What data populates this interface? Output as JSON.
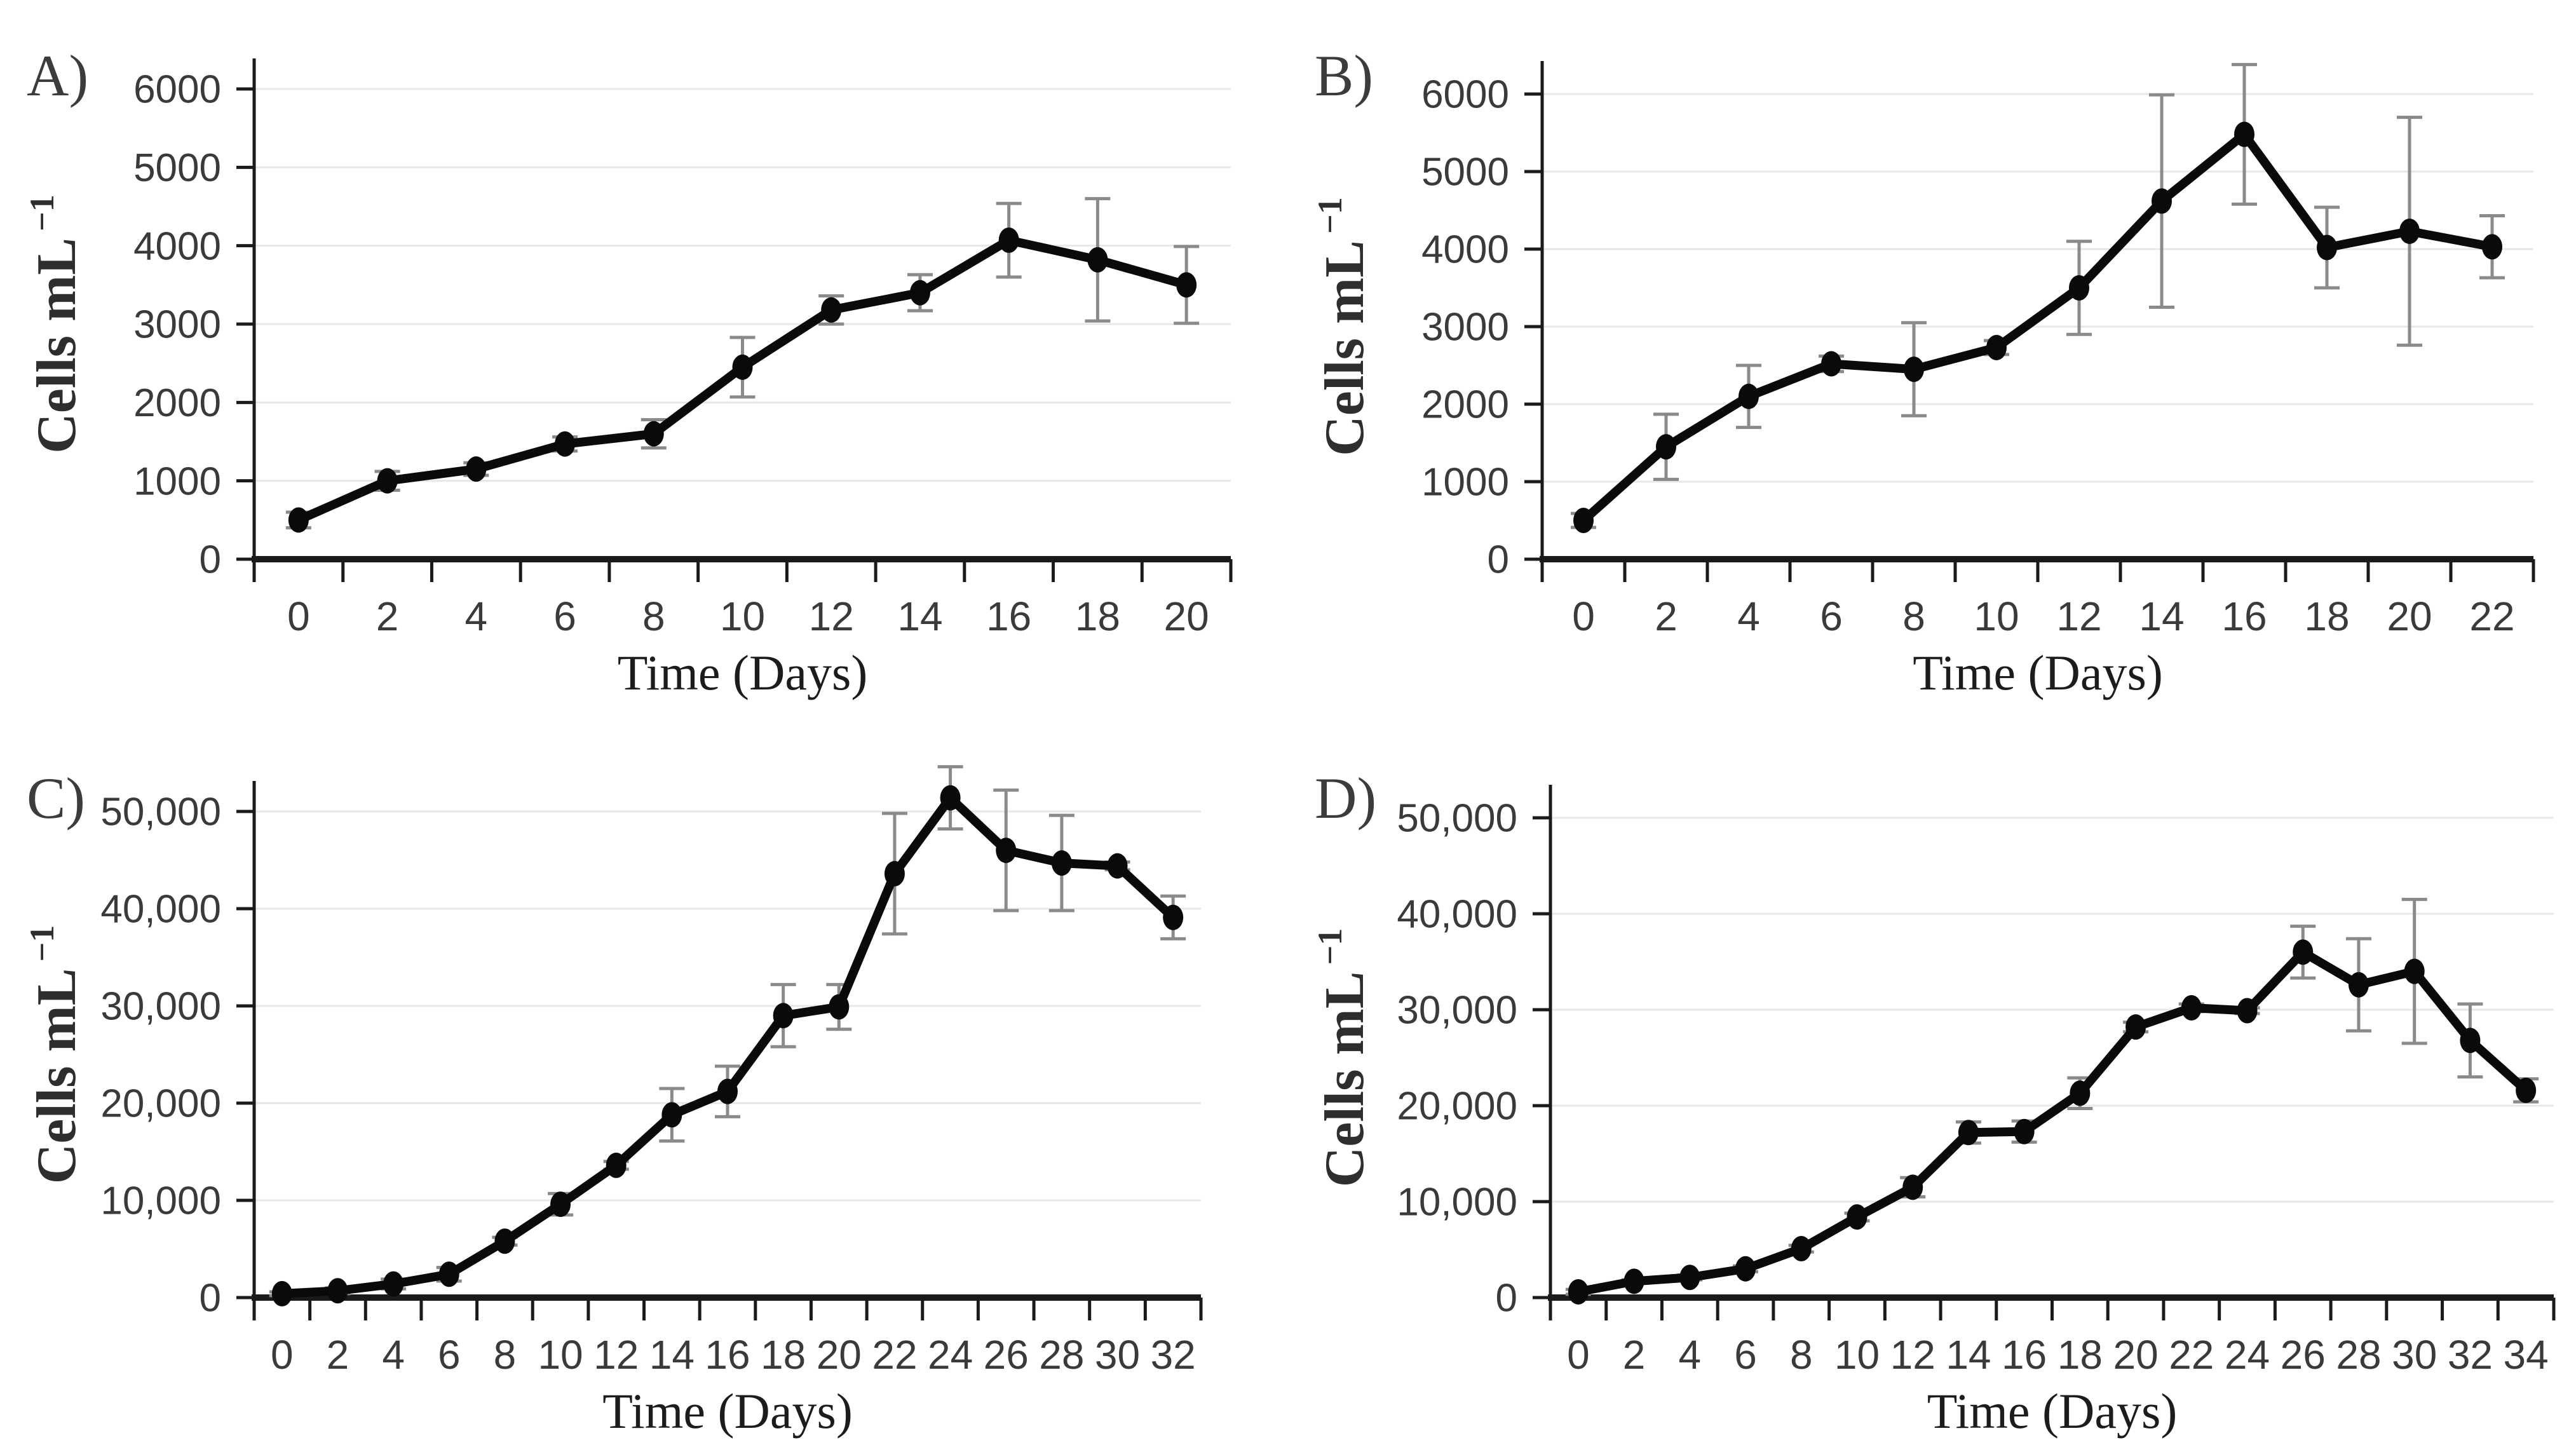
{
  "figure": {
    "background": "#ffffff",
    "panel_letters": [
      "A)",
      "B)",
      "C)",
      "D)"
    ]
  },
  "colors": {
    "line": "#0a0a0a",
    "marker": "#0a0a0a",
    "error_bar": "#8a8a8a",
    "gridline": "#e8e8e8",
    "axis": "#1a1a1a",
    "tick_text": "#3a3a3a",
    "title_text": "#1c1c1c"
  },
  "chart_data": [
    {
      "panel_label": "A)",
      "type": "line",
      "title": "",
      "xlabel": "Time (Days)",
      "ylabel": "Cells mL",
      "ylabel_superscript": "−1",
      "x": [
        0,
        2,
        4,
        6,
        8,
        10,
        12,
        14,
        16,
        18,
        20
      ],
      "y": [
        500,
        1000,
        1150,
        1470,
        1600,
        2450,
        3180,
        3400,
        4070,
        3820,
        3500
      ],
      "y_err": [
        100,
        120,
        80,
        90,
        180,
        380,
        180,
        230,
        470,
        780,
        490
      ],
      "y_tick_values": [
        0,
        1000,
        2000,
        3000,
        4000,
        5000,
        6000
      ],
      "y_tick_labels": [
        "0",
        "1000",
        "2000",
        "3000",
        "4000",
        "5000",
        "6000"
      ],
      "ylim": [
        0,
        6000
      ],
      "grid": "horizontal",
      "legend": "none",
      "marker": "filled-circle"
    },
    {
      "panel_label": "B)",
      "type": "line",
      "title": "",
      "xlabel": "Time (Days)",
      "ylabel": "Cells mL",
      "ylabel_superscript": "−1",
      "x": [
        0,
        2,
        4,
        6,
        8,
        10,
        12,
        14,
        16,
        18,
        20,
        22
      ],
      "y": [
        500,
        1450,
        2100,
        2520,
        2450,
        2730,
        3500,
        4620,
        5480,
        4020,
        4230,
        4030
      ],
      "y_err": [
        90,
        420,
        400,
        100,
        600,
        90,
        600,
        1370,
        900,
        520,
        1470,
        400
      ],
      "y_tick_values": [
        0,
        1000,
        2000,
        3000,
        4000,
        5000,
        6000
      ],
      "y_tick_labels": [
        "0",
        "1000",
        "2000",
        "3000",
        "4000",
        "5000",
        "6000"
      ],
      "ylim": [
        0,
        6000
      ],
      "grid": "horizontal",
      "legend": "none",
      "marker": "filled-circle"
    },
    {
      "panel_label": "C)",
      "type": "line",
      "title": "",
      "xlabel": "Time (Days)",
      "ylabel": "Cells mL",
      "ylabel_superscript": "−1",
      "x": [
        0,
        2,
        4,
        6,
        8,
        10,
        12,
        14,
        16,
        18,
        20,
        22,
        24,
        26,
        28,
        30,
        32
      ],
      "y": [
        400,
        700,
        1400,
        2400,
        5800,
        9600,
        13600,
        18800,
        21200,
        29000,
        29900,
        43600,
        51400,
        46000,
        44700,
        44400,
        39100
      ],
      "y_err": [
        200,
        300,
        500,
        700,
        400,
        1100,
        400,
        2700,
        2600,
        3200,
        2300,
        6200,
        3200,
        6200,
        4900,
        400,
        2200
      ],
      "y_tick_values": [
        0,
        10000,
        20000,
        30000,
        40000,
        50000
      ],
      "y_tick_labels": [
        "0",
        "10,000",
        "20,000",
        "30,000",
        "40,000",
        "50,000"
      ],
      "ylim": [
        0,
        55000
      ],
      "grid": "horizontal",
      "legend": "none",
      "marker": "filled-circle"
    },
    {
      "panel_label": "D)",
      "type": "line",
      "title": "",
      "xlabel": "Time (Days)",
      "ylabel": "Cells mL",
      "ylabel_superscript": "−1",
      "x": [
        0,
        2,
        4,
        6,
        8,
        10,
        12,
        14,
        16,
        18,
        20,
        22,
        24,
        26,
        28,
        30,
        32,
        34
      ],
      "y": [
        600,
        1700,
        2100,
        3000,
        5100,
        8400,
        11500,
        17200,
        17300,
        21300,
        28200,
        30200,
        29900,
        36000,
        32600,
        34000,
        26800,
        21600
      ],
      "y_err": [
        250,
        150,
        250,
        300,
        350,
        400,
        1000,
        1100,
        1100,
        1600,
        500,
        400,
        300,
        2700,
        4800,
        7500,
        3800,
        1200
      ],
      "y_tick_values": [
        0,
        10000,
        20000,
        30000,
        40000,
        50000
      ],
      "y_tick_labels": [
        "0",
        "10,000",
        "20,000",
        "30,000",
        "40,000",
        "50,000"
      ],
      "ylim": [
        0,
        55000
      ],
      "grid": "horizontal",
      "legend": "none",
      "marker": "filled-circle"
    }
  ]
}
